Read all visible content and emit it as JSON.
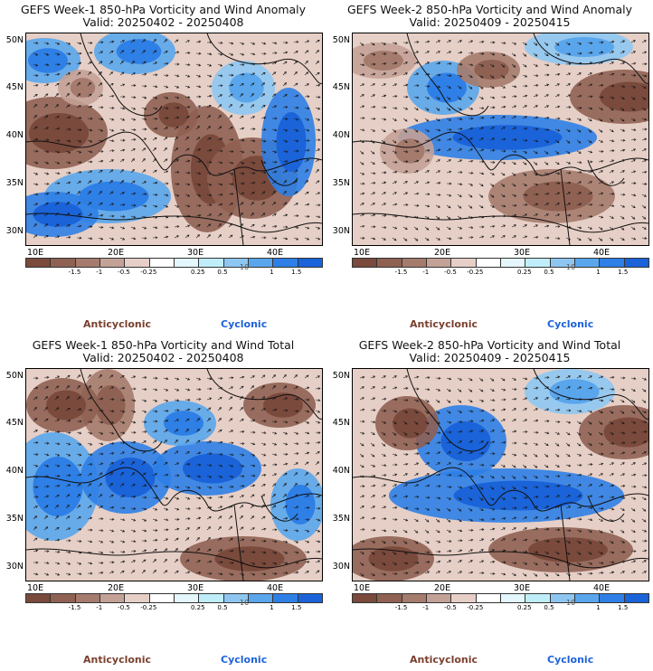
{
  "panels": [
    {
      "title_line1": "GEFS Week-1 850-hPa Vorticity and Wind Anomaly",
      "title_line2": "Valid: 20250402 - 20250408"
    },
    {
      "title_line1": "GEFS Week-2 850-hPa Vorticity and Wind Anomaly",
      "title_line2": "Valid: 20250409 - 20250415"
    },
    {
      "title_line1": "GEFS Week-1 850-hPa Vorticity and Wind Total",
      "title_line2": "Valid: 20250402 - 20250408"
    },
    {
      "title_line1": "GEFS Week-2 850-hPa Vorticity and Wind Total",
      "title_line2": "Valid: 20250409 - 20250415"
    }
  ],
  "axes": {
    "lat_labels": [
      "50N",
      "45N",
      "40N",
      "35N",
      "30N"
    ],
    "lon_labels": [
      "10E",
      "20E",
      "30E",
      "40E"
    ]
  },
  "colorbar": {
    "colors": [
      "#7a4a3c",
      "#8f6152",
      "#a57b6d",
      "#c4a196",
      "#e6cfc6",
      "#ffffff",
      "#e4f7fc",
      "#bfeefa",
      "#8ec6f2",
      "#5aa6ec",
      "#2e7fe6",
      "#1a63d9"
    ],
    "ticks": [
      "-1.5",
      "-1",
      "-0.5",
      "-0.25",
      "0.25",
      "0.5",
      "1",
      "1.5"
    ],
    "scale_note": "10"
  },
  "legend": {
    "anticyclonic": "Anticyclonic",
    "cyclonic": "Cyclonic"
  }
}
